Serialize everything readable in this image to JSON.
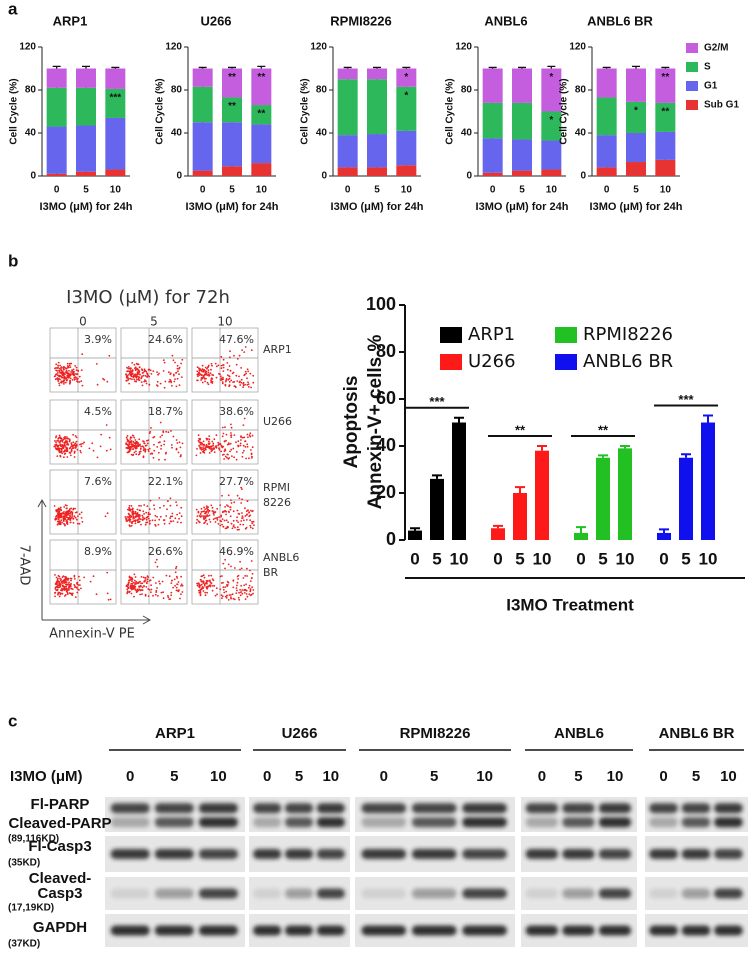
{
  "panel_labels": [
    "a",
    "b",
    "c"
  ],
  "cell_cycle_legend": [
    {
      "name": "G2/M",
      "color": "#c55ddf"
    },
    {
      "name": "S",
      "color": "#2eb85c"
    },
    {
      "name": "G1",
      "color": "#6565ee"
    },
    {
      "name": "Sub G1",
      "color": "#e83333"
    }
  ],
  "chart_data": [
    {
      "type": "stacked_bar",
      "title": "ARP1",
      "ylabel": "Cell Cycle (%)",
      "xlabel": "I3MO (μM) for 24h",
      "categories": [
        "0",
        "5",
        "10"
      ],
      "ylim": [
        0,
        120
      ],
      "yticks": [
        0,
        40,
        80,
        120
      ],
      "series": [
        {
          "color": "#e83333",
          "values": [
            2,
            4,
            6
          ],
          "errors": [
            1,
            1,
            1
          ]
        },
        {
          "color": "#6565ee",
          "values": [
            44,
            43,
            48
          ],
          "errors": [
            1,
            1,
            1
          ]
        },
        {
          "color": "#2eb85c",
          "values": [
            36,
            35,
            27
          ],
          "errors": [
            1,
            1,
            1
          ],
          "significance": [
            null,
            null,
            "***"
          ]
        },
        {
          "color": "#c55ddf",
          "values": [
            18,
            18,
            19
          ],
          "errors": [
            2,
            2,
            1
          ]
        }
      ]
    },
    {
      "type": "stacked_bar",
      "title": "U266",
      "ylabel": "Cell Cycle (%)",
      "xlabel": "I3MO (μM) for 24h",
      "categories": [
        "0",
        "5",
        "10"
      ],
      "ylim": [
        0,
        120
      ],
      "yticks": [
        0,
        40,
        80,
        120
      ],
      "series": [
        {
          "color": "#e83333",
          "values": [
            5,
            9,
            12
          ],
          "errors": [
            1,
            1,
            1
          ]
        },
        {
          "color": "#6565ee",
          "values": [
            45,
            41,
            36
          ],
          "errors": [
            1,
            1,
            1
          ]
        },
        {
          "color": "#2eb85c",
          "values": [
            33,
            23,
            18
          ],
          "errors": [
            1,
            1,
            1
          ],
          "significance": [
            null,
            "**",
            "**"
          ]
        },
        {
          "color": "#c55ddf",
          "values": [
            17,
            27,
            34
          ],
          "errors": [
            1,
            1,
            2
          ],
          "significance": [
            null,
            "**",
            "**"
          ]
        }
      ]
    },
    {
      "type": "stacked_bar",
      "title": "RPMI8226",
      "ylabel": "Cell Cycle (%)",
      "xlabel": "I3MO (μM) for 24h",
      "categories": [
        "0",
        "5",
        "10"
      ],
      "ylim": [
        0,
        120
      ],
      "yticks": [
        0,
        40,
        80,
        120
      ],
      "series": [
        {
          "color": "#e83333",
          "values": [
            8,
            8,
            10
          ],
          "errors": [
            1,
            1,
            1
          ]
        },
        {
          "color": "#6565ee",
          "values": [
            30,
            31,
            32
          ],
          "errors": [
            1,
            1,
            1
          ]
        },
        {
          "color": "#2eb85c",
          "values": [
            52,
            51,
            41
          ],
          "errors": [
            1,
            1,
            1
          ],
          "significance": [
            null,
            null,
            "*"
          ]
        },
        {
          "color": "#c55ddf",
          "values": [
            10,
            10,
            17
          ],
          "errors": [
            1,
            1,
            1
          ],
          "significance": [
            null,
            null,
            "*"
          ]
        }
      ]
    },
    {
      "type": "stacked_bar",
      "title": "ANBL6",
      "ylabel": "Cell Cycle (%)",
      "xlabel": "I3MO (μM) for 24h",
      "categories": [
        "0",
        "5",
        "10"
      ],
      "ylim": [
        0,
        120
      ],
      "yticks": [
        0,
        40,
        80,
        120
      ],
      "series": [
        {
          "color": "#e83333",
          "values": [
            3,
            5,
            6
          ],
          "errors": [
            1,
            1,
            1
          ]
        },
        {
          "color": "#6565ee",
          "values": [
            32,
            29,
            27
          ],
          "errors": [
            1,
            1,
            1
          ]
        },
        {
          "color": "#2eb85c",
          "values": [
            33,
            34,
            27
          ],
          "errors": [
            1,
            1,
            1
          ],
          "significance": [
            null,
            null,
            "*"
          ]
        },
        {
          "color": "#c55ddf",
          "values": [
            32,
            32,
            40
          ],
          "errors": [
            1,
            1,
            2
          ],
          "significance": [
            null,
            null,
            "*"
          ]
        }
      ]
    },
    {
      "type": "stacked_bar",
      "title": "ANBL6 BR",
      "ylabel": "Cell Cycle (%)",
      "xlabel": "I3MO (μM) for 24h",
      "categories": [
        "0",
        "5",
        "10"
      ],
      "ylim": [
        0,
        120
      ],
      "yticks": [
        0,
        40,
        80,
        120
      ],
      "series": [
        {
          "color": "#e83333",
          "values": [
            8,
            13,
            15
          ],
          "errors": [
            1,
            1,
            1
          ]
        },
        {
          "color": "#6565ee",
          "values": [
            30,
            27,
            26
          ],
          "errors": [
            1,
            1,
            1
          ]
        },
        {
          "color": "#2eb85c",
          "values": [
            35,
            29,
            27
          ],
          "errors": [
            1,
            1,
            1
          ],
          "significance": [
            null,
            "*",
            "**"
          ]
        },
        {
          "color": "#c55ddf",
          "values": [
            27,
            31,
            32
          ],
          "errors": [
            1,
            2,
            1
          ],
          "significance": [
            null,
            null,
            "**"
          ]
        }
      ]
    },
    {
      "type": "grouped_bar",
      "ylabel": [
        "Apoptosis",
        "Annexin-V+ cells %"
      ],
      "xlabel": "I3MO Treatment",
      "categories": [
        "0",
        "5",
        "10"
      ],
      "ylim": [
        0,
        100
      ],
      "yticks": [
        0,
        20,
        40,
        60,
        80,
        100
      ],
      "series": [
        {
          "name": "ARP1",
          "color": "#000000",
          "values": [
            4,
            26,
            50
          ],
          "errors": [
            1,
            1.5,
            2
          ],
          "significance": "***"
        },
        {
          "name": "U266",
          "color": "#ff1a1a",
          "values": [
            5,
            20,
            38
          ],
          "errors": [
            1,
            2.5,
            2
          ],
          "significance": "**"
        },
        {
          "name": "RPMI8226",
          "color": "#22c022",
          "values": [
            3,
            35,
            39
          ],
          "errors": [
            2.5,
            1,
            1
          ],
          "significance": "**"
        },
        {
          "name": "ANBL6 BR",
          "color": "#1010ee",
          "values": [
            3,
            35,
            50
          ],
          "errors": [
            1.5,
            1.5,
            3
          ],
          "significance": "***"
        }
      ]
    }
  ],
  "flow": {
    "title": "I3MO (μM) for 72h",
    "doses": [
      "0",
      "5",
      "10"
    ],
    "rows": [
      {
        "label": [
          "ARP1"
        ],
        "percentages": [
          "3.9%",
          "24.6%",
          "47.6%"
        ]
      },
      {
        "label": [
          "U266"
        ],
        "percentages": [
          "4.5%",
          "18.7%",
          "38.6%"
        ]
      },
      {
        "label": [
          "RPMI",
          "8226"
        ],
        "percentages": [
          "7.6%",
          "22.1%",
          "27.7%"
        ]
      },
      {
        "label": [
          "ANBL6",
          "BR"
        ],
        "percentages": [
          "8.9%",
          "26.6%",
          "46.9%"
        ]
      }
    ],
    "ylabel": "7-AAD",
    "xlabel": "Annexin-V PE"
  },
  "western": {
    "dose_label": "I3MO (μM)",
    "groups": [
      {
        "name": "ARP1",
        "doses": [
          "0",
          "5",
          "10"
        ]
      },
      {
        "name": "U266",
        "doses": [
          "0",
          "5",
          "10"
        ]
      },
      {
        "name": "RPMI8226",
        "doses": [
          "0",
          "5",
          "10"
        ]
      },
      {
        "name": "ANBL6",
        "doses": [
          "0",
          "5",
          "10"
        ]
      },
      {
        "name": "ANBL6 BR",
        "doses": [
          "0",
          "5",
          "10"
        ]
      }
    ],
    "rows": [
      {
        "labels": [
          "Fl-PARP",
          "Cleaved-PARP",
          "(89,116KD)"
        ]
      },
      {
        "labels": [
          "Fl-Casp3",
          "(35KD)"
        ]
      },
      {
        "labels": [
          "Cleaved-",
          "Casp3",
          "(17,19KD)"
        ]
      },
      {
        "labels": [
          "GAPDH",
          "(37KD)"
        ]
      }
    ]
  }
}
